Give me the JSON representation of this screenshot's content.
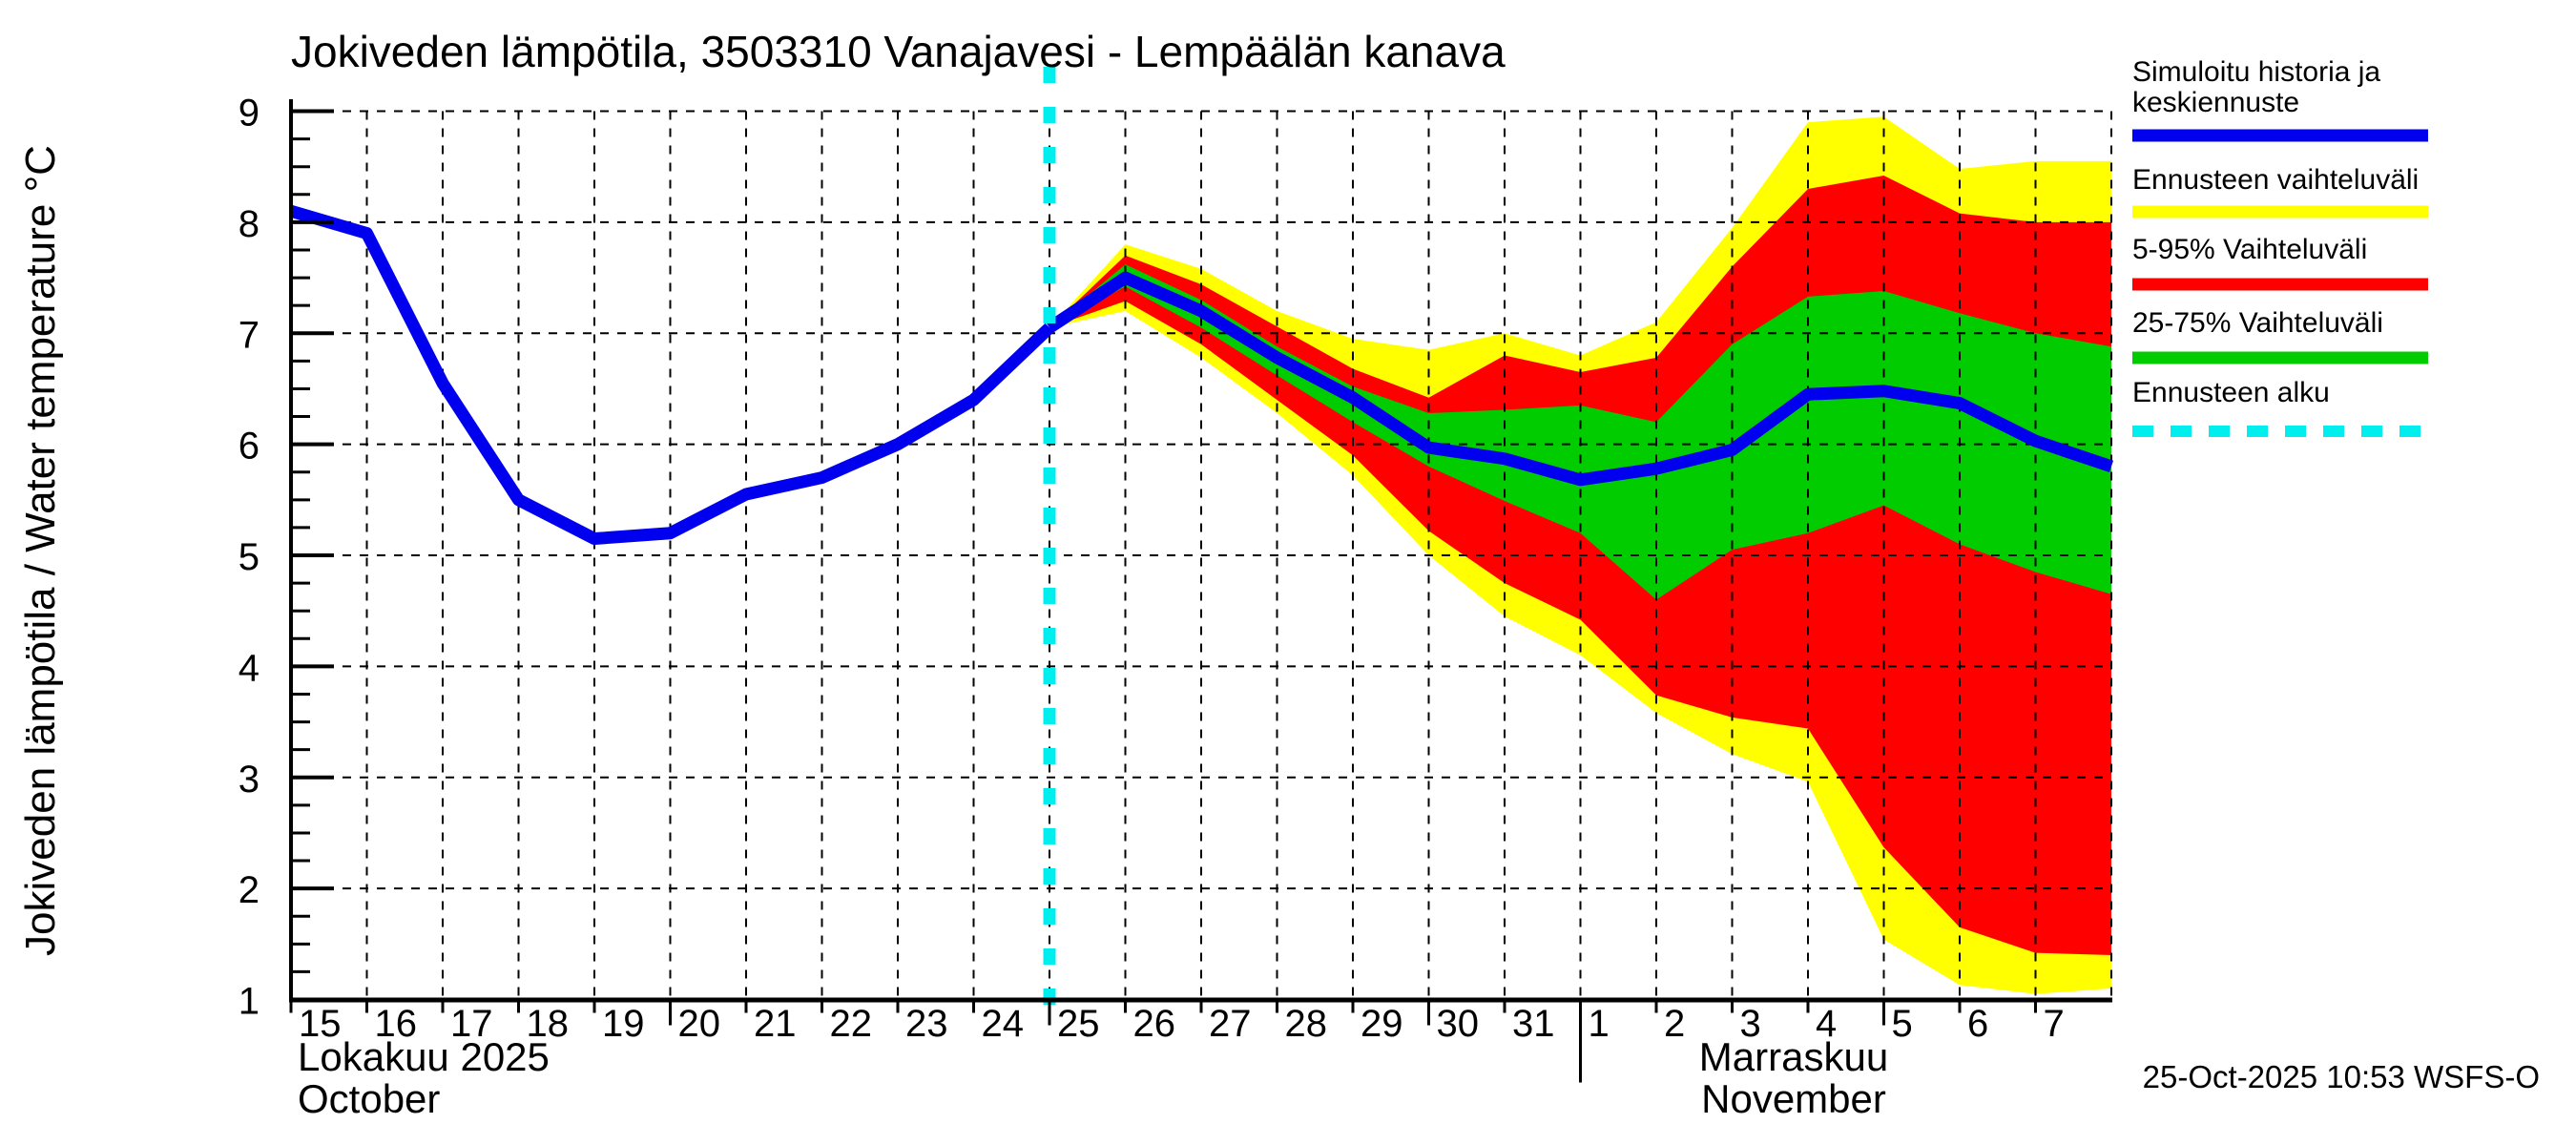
{
  "footer": {
    "timestamp": "25-Oct-2025 10:53 WSFS-O"
  },
  "legend": {
    "items": [
      {
        "lines": [
          "Simuloitu historia ja",
          "keskiennuste"
        ],
        "color": "#0000ee",
        "style": "solid"
      },
      {
        "lines": [
          "Ennusteen vaihteluväli"
        ],
        "color": "#ffff00",
        "style": "solid"
      },
      {
        "lines": [
          "5-95% Vaihteluväli"
        ],
        "color": "#ff0000",
        "style": "solid"
      },
      {
        "lines": [
          "25-75% Vaihteluväli"
        ],
        "color": "#00cc00",
        "style": "solid"
      },
      {
        "lines": [
          "Ennusteen alku"
        ],
        "color": "#00eeee",
        "style": "dashed"
      }
    ]
  },
  "chart_data": {
    "type": "area",
    "title": "Jokiveden lämpötila, 3503310 Vanajavesi - Lempäälän kanava",
    "ylabel": "Jokiveden lämpötila / Water temperature  °C",
    "ylim": [
      1,
      9
    ],
    "grid": "dashed",
    "legend_position": "right",
    "y_ticks": [
      1,
      2,
      3,
      4,
      5,
      6,
      7,
      8,
      9
    ],
    "x_months": {
      "left": {
        "line1": "Lokakuu  2025",
        "line2": "October"
      },
      "right": {
        "line1": "Marraskuu",
        "line2": "November"
      }
    },
    "x_ticks": [
      {
        "day": 15,
        "label": "15"
      },
      {
        "day": 16,
        "label": "16"
      },
      {
        "day": 17,
        "label": "17"
      },
      {
        "day": 18,
        "label": "18"
      },
      {
        "day": 19,
        "label": "19"
      },
      {
        "day": 20,
        "label": "20",
        "long": true
      },
      {
        "day": 21,
        "label": "21"
      },
      {
        "day": 22,
        "label": "22"
      },
      {
        "day": 23,
        "label": "23"
      },
      {
        "day": 24,
        "label": "24"
      },
      {
        "day": 25,
        "label": "25",
        "long": true
      },
      {
        "day": 26,
        "label": "26"
      },
      {
        "day": 27,
        "label": "27"
      },
      {
        "day": 28,
        "label": "28"
      },
      {
        "day": 29,
        "label": "29"
      },
      {
        "day": 30,
        "label": "30",
        "long": true
      },
      {
        "day": 31,
        "label": "31"
      },
      {
        "day": 32,
        "label": "1",
        "separator": true
      },
      {
        "day": 33,
        "label": "2"
      },
      {
        "day": 34,
        "label": "3"
      },
      {
        "day": 35,
        "label": "4"
      },
      {
        "day": 36,
        "label": "5",
        "long": true
      },
      {
        "day": 37,
        "label": "6"
      },
      {
        "day": 38,
        "label": "7"
      },
      {
        "day": 39,
        "label": "",
        "edge": true
      }
    ],
    "forecast_start_day": 25,
    "history": {
      "name": "Simuloitu historia ja keskiennuste",
      "days": [
        15,
        16,
        17,
        18,
        19,
        20,
        21,
        22,
        23,
        24,
        25
      ],
      "values": [
        8.1,
        7.9,
        6.55,
        5.5,
        5.15,
        5.2,
        5.55,
        5.7,
        6.0,
        6.4,
        7.05
      ]
    },
    "forecast": {
      "days": [
        25,
        26,
        27,
        28,
        29,
        30,
        31,
        32,
        33,
        34,
        35,
        36,
        37,
        38,
        39
      ],
      "median": [
        7.05,
        7.5,
        7.2,
        6.78,
        6.42,
        5.97,
        5.87,
        5.68,
        5.78,
        5.95,
        6.45,
        6.48,
        6.37,
        6.03,
        5.8
      ],
      "range_max": [
        7.05,
        7.8,
        7.58,
        7.2,
        6.95,
        6.85,
        7.0,
        6.8,
        7.1,
        7.95,
        8.9,
        8.95,
        8.48,
        8.55,
        8.55
      ],
      "p95": [
        7.05,
        7.7,
        7.44,
        7.06,
        6.68,
        6.42,
        6.8,
        6.65,
        6.78,
        7.6,
        8.3,
        8.42,
        8.08,
        8.0,
        8.0
      ],
      "p75": [
        7.05,
        7.62,
        7.3,
        6.88,
        6.52,
        6.28,
        6.31,
        6.35,
        6.2,
        6.9,
        7.33,
        7.38,
        7.18,
        7.0,
        6.88
      ],
      "p25": [
        7.05,
        7.42,
        7.05,
        6.62,
        6.2,
        5.8,
        5.49,
        5.2,
        4.6,
        5.05,
        5.2,
        5.45,
        5.1,
        4.85,
        4.65
      ],
      "p5": [
        7.05,
        7.29,
        6.9,
        6.4,
        5.9,
        5.22,
        4.75,
        4.42,
        3.74,
        3.54,
        3.44,
        2.37,
        1.65,
        1.42,
        1.4
      ],
      "range_min": [
        7.05,
        7.2,
        6.78,
        6.28,
        5.72,
        5.0,
        4.45,
        4.1,
        3.58,
        3.21,
        2.96,
        1.54,
        1.13,
        1.05,
        1.1
      ]
    },
    "colors": {
      "median": "#0000ee",
      "range": "#ffff00",
      "p5_95": "#ff0000",
      "p25_75": "#00cc00",
      "forecast_start": "#00eeee",
      "axis": "#000000"
    }
  }
}
